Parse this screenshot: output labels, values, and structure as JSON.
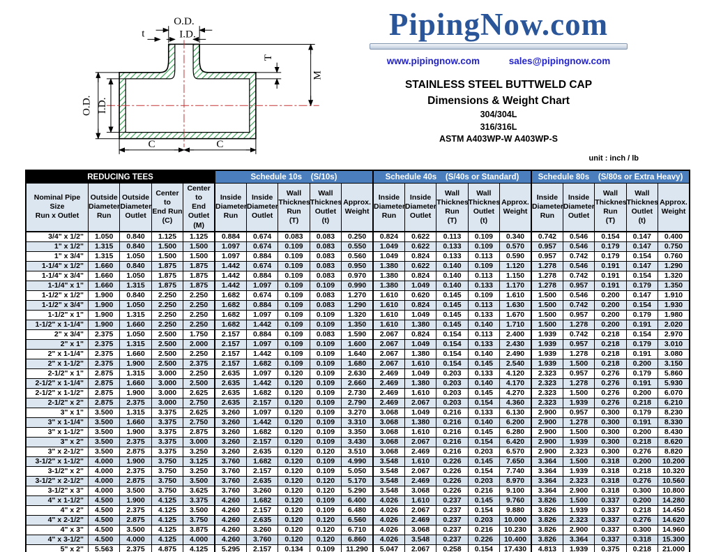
{
  "brand": {
    "logo_text": "PipingNow.com",
    "website": "www.pipingnow.com",
    "email": "sales@pipingnow.com"
  },
  "heading": {
    "line1": "STAINLESS STEEL BUTTWELD CAP",
    "line2": "Dimensions & Weight Chart",
    "line3": "304/304L",
    "line4": "316/316L",
    "line5": "ASTM A403WP-W   A403WP-S",
    "unit_note": "unit : inch / lb"
  },
  "diagram": {
    "labels": {
      "od_top": "O.D.",
      "id_top": "I.D.",
      "t_small": "t",
      "od_left": "O.D.",
      "id_left": "I.D.",
      "wall_T": "T",
      "m_height": "M",
      "c_left": "C",
      "c_right": "C"
    }
  },
  "colors": {
    "accent_blue": "#4a7ebd",
    "stripe_blue": "#dce6f1",
    "logo_blue": "#2a5699",
    "link_blue": "#2323cc",
    "bar_black": "#000000",
    "centerline_red": "#c43434",
    "hatch_green": "#35a052"
  },
  "table": {
    "group_headers": [
      {
        "label": "REDUCING TEES",
        "span": 5,
        "theme": "dark"
      },
      {
        "label": "Schedule 10s    (S/10s)",
        "span": 5,
        "theme": "blue"
      },
      {
        "label": "Schedule 40s    (S/40s or Standard)",
        "span": 5,
        "theme": "blue"
      },
      {
        "label": "Schedule 80s    (S/80s or Extra Heavy)",
        "span": 5,
        "theme": "blue"
      }
    ],
    "column_headers": [
      "Nominal Pipe\nSize\nRun x Outlet",
      "Outside\nDiameter\nRun",
      "Outside\nDiameter\nOutlet",
      "Center to\nEnd Run\n(C)",
      "Center to\nEnd\nOutlet\n(M)",
      "Inside\nDiameter\nRun",
      "Inside\nDiameter\nOutlet",
      "Wall\nThickness\nRun\n(T)",
      "Wall\nThickness\nOutlet\n(t)",
      "Approx.\nWeight",
      "Inside\nDiameter\nRun",
      "Inside\nDiameter\nOutlet",
      "Wall\nThickness\nRun\n(T)",
      "Wall\nThickness\nOutlet\n(t)",
      "Approx.\nWeight",
      "Inside\nDiameter\nRun",
      "Inside\nDiameter\nOutlet",
      "Wall\nThickness\nRun\n(T)",
      "Wall\nThickness\nOutlet\n(t)",
      "Approx.\nWeight"
    ],
    "rows": [
      [
        "3/4\" x 1/2\"",
        "1.050",
        "0.840",
        "1.125",
        "1.125",
        "0.884",
        "0.674",
        "0.083",
        "0.083",
        "0.250",
        "0.824",
        "0.622",
        "0.113",
        "0.109",
        "0.340",
        "0.742",
        "0.546",
        "0.154",
        "0.147",
        "0.400"
      ],
      [
        "1\" x 1/2\"",
        "1.315",
        "0.840",
        "1.500",
        "1.500",
        "1.097",
        "0.674",
        "0.109",
        "0.083",
        "0.550",
        "1.049",
        "0.622",
        "0.133",
        "0.109",
        "0.570",
        "0.957",
        "0.546",
        "0.179",
        "0.147",
        "0.750"
      ],
      [
        "1\" x 3/4\"",
        "1.315",
        "1.050",
        "1.500",
        "1.500",
        "1.097",
        "0.884",
        "0.109",
        "0.083",
        "0.560",
        "1.049",
        "0.824",
        "0.133",
        "0.113",
        "0.590",
        "0.957",
        "0.742",
        "0.179",
        "0.154",
        "0.760"
      ],
      [
        "1-1/4\" x 1/2\"",
        "1.660",
        "0.840",
        "1.875",
        "1.875",
        "1.442",
        "0.674",
        "0.109",
        "0.083",
        "0.950",
        "1.380",
        "0.622",
        "0.140",
        "0.109",
        "1.120",
        "1.278",
        "0.546",
        "0.191",
        "0.147",
        "1.290"
      ],
      [
        "1-1/4\" x 3/4\"",
        "1.660",
        "1.050",
        "1.875",
        "1.875",
        "1.442",
        "0.884",
        "0.109",
        "0.083",
        "0.970",
        "1.380",
        "0.824",
        "0.140",
        "0.113",
        "1.150",
        "1.278",
        "0.742",
        "0.191",
        "0.154",
        "1.320"
      ],
      [
        "1-1/4\" x 1\"",
        "1.660",
        "1.315",
        "1.875",
        "1.875",
        "1.442",
        "1.097",
        "0.109",
        "0.109",
        "0.990",
        "1.380",
        "1.049",
        "0.140",
        "0.133",
        "1.170",
        "1.278",
        "0.957",
        "0.191",
        "0.179",
        "1.350"
      ],
      [
        "1-1/2\" x 1/2\"",
        "1.900",
        "0.840",
        "2.250",
        "2.250",
        "1.682",
        "0.674",
        "0.109",
        "0.083",
        "1.270",
        "1.610",
        "0.620",
        "0.145",
        "0.109",
        "1.610",
        "1.500",
        "0.546",
        "0.200",
        "0.147",
        "1.910"
      ],
      [
        "1-1/2\" x 3/4\"",
        "1.900",
        "1.050",
        "2.250",
        "2.250",
        "1.682",
        "0.884",
        "0.109",
        "0.083",
        "1.290",
        "1.610",
        "0.824",
        "0.145",
        "0.113",
        "1.630",
        "1.500",
        "0.742",
        "0.200",
        "0.154",
        "1.930"
      ],
      [
        "1-1/2\" x 1\"",
        "1.900",
        "1.315",
        "2.250",
        "2.250",
        "1.682",
        "1.097",
        "0.109",
        "0.109",
        "1.320",
        "1.610",
        "1.049",
        "0.145",
        "0.133",
        "1.670",
        "1.500",
        "0.957",
        "0.200",
        "0.179",
        "1.980"
      ],
      [
        "1-1/2\" x 1-1/4\"",
        "1.900",
        "1.660",
        "2.250",
        "2.250",
        "1.682",
        "1.442",
        "0.109",
        "0.109",
        "1.350",
        "1.610",
        "1.380",
        "0.145",
        "0.140",
        "1.710",
        "1.500",
        "1.278",
        "0.200",
        "0.191",
        "2.020"
      ],
      [
        "2\" x 3/4\"",
        "2.375",
        "1.050",
        "2.500",
        "1.750",
        "2.157",
        "0.884",
        "0.109",
        "0.083",
        "1.590",
        "2.067",
        "0.824",
        "0.154",
        "0.113",
        "2.400",
        "1.939",
        "0.742",
        "0.218",
        "0.154",
        "2.970"
      ],
      [
        "2\" x 1\"",
        "2.375",
        "1.315",
        "2.500",
        "2.000",
        "2.157",
        "1.097",
        "0.109",
        "0.109",
        "1.600",
        "2.067",
        "1.049",
        "0.154",
        "0.133",
        "2.430",
        "1.939",
        "0.957",
        "0.218",
        "0.179",
        "3.010"
      ],
      [
        "2\" x 1-1/4\"",
        "2.375",
        "1.660",
        "2.500",
        "2.250",
        "2.157",
        "1.442",
        "0.109",
        "0.109",
        "1.640",
        "2.067",
        "1.380",
        "0.154",
        "0.140",
        "2.490",
        "1.939",
        "1.278",
        "0.218",
        "0.191",
        "3.080"
      ],
      [
        "2\" x 1-1/2\"",
        "2.375",
        "1.900",
        "2.500",
        "2.375",
        "2.157",
        "1.682",
        "0.109",
        "0.109",
        "1.680",
        "2.067",
        "1.610",
        "0.154",
        "0.145",
        "2.540",
        "1.939",
        "1.500",
        "0.218",
        "0.200",
        "3.150"
      ],
      [
        "2-1/2\" x 1\"",
        "2.875",
        "1.315",
        "3.000",
        "2.250",
        "2.635",
        "1.097",
        "0.120",
        "0.109",
        "2.630",
        "2.469",
        "1.049",
        "0.203",
        "0.133",
        "4.120",
        "2.323",
        "0.957",
        "0.276",
        "0.179",
        "5.860"
      ],
      [
        "2-1/2\" x 1-1/4\"",
        "2.875",
        "1.660",
        "3.000",
        "2.500",
        "2.635",
        "1.442",
        "0.120",
        "0.109",
        "2.660",
        "2.469",
        "1.380",
        "0.203",
        "0.140",
        "4.170",
        "2.323",
        "1.278",
        "0.276",
        "0.191",
        "5.930"
      ],
      [
        "2-1/2\" x 1-1/2\"",
        "2.875",
        "1.900",
        "3.000",
        "2.625",
        "2.635",
        "1.682",
        "0.120",
        "0.109",
        "2.730",
        "2.469",
        "1.610",
        "0.203",
        "0.145",
        "4.270",
        "2.323",
        "1.500",
        "0.276",
        "0.200",
        "6.070"
      ],
      [
        "2-1/2\" x 2\"",
        "2.875",
        "2.375",
        "3.000",
        "2.750",
        "2.635",
        "2.157",
        "0.120",
        "0.109",
        "2.790",
        "2.469",
        "2.067",
        "0.203",
        "0.154",
        "4.360",
        "2.323",
        "1.939",
        "0.276",
        "0.218",
        "6.210"
      ],
      [
        "3\" x 1\"",
        "3.500",
        "1.315",
        "3.375",
        "2.625",
        "3.260",
        "1.097",
        "0.120",
        "0.109",
        "3.270",
        "3.068",
        "1.049",
        "0.216",
        "0.133",
        "6.130",
        "2.900",
        "0.957",
        "0.300",
        "0.179",
        "8.230"
      ],
      [
        "3\" x 1-1/4\"",
        "3.500",
        "1.660",
        "3.375",
        "2.750",
        "3.260",
        "1.442",
        "0.120",
        "0.109",
        "3.310",
        "3.068",
        "1.380",
        "0.216",
        "0.140",
        "6.200",
        "2.900",
        "1.278",
        "0.300",
        "0.191",
        "8.330"
      ],
      [
        "3\" x 1-1/2\"",
        "3.500",
        "1.900",
        "3.375",
        "2.875",
        "3.260",
        "1.682",
        "0.120",
        "0.109",
        "3.350",
        "3.068",
        "1.610",
        "0.216",
        "0.145",
        "6.280",
        "2.900",
        "1.500",
        "0.300",
        "0.200",
        "8.430"
      ],
      [
        "3\" x 2\"",
        "3.500",
        "2.375",
        "3.375",
        "3.000",
        "3.260",
        "2.157",
        "0.120",
        "0.109",
        "3.430",
        "3.068",
        "2.067",
        "0.216",
        "0.154",
        "6.420",
        "2.900",
        "1.939",
        "0.300",
        "0.218",
        "8.620"
      ],
      [
        "3\" x 2-1/2\"",
        "3.500",
        "2.875",
        "3.375",
        "3.250",
        "3.260",
        "2.635",
        "0.120",
        "0.120",
        "3.510",
        "3.068",
        "2.469",
        "0.216",
        "0.203",
        "6.570",
        "2.900",
        "2.323",
        "0.300",
        "0.276",
        "8.820"
      ],
      [
        "3-1/2\" x 1-1/2\"",
        "4.000",
        "1.900",
        "3.750",
        "3.125",
        "3.760",
        "1.682",
        "0.120",
        "0.109",
        "4.990",
        "3.548",
        "1.610",
        "0.226",
        "0.145",
        "7.650",
        "3.364",
        "1.500",
        "0.318",
        "0.200",
        "10.200"
      ],
      [
        "3-1/2\" x 2\"",
        "4.000",
        "2.375",
        "3.750",
        "3.250",
        "3.760",
        "2.157",
        "0.120",
        "0.109",
        "5.050",
        "3.548",
        "2.067",
        "0.226",
        "0.154",
        "7.740",
        "3.364",
        "1.939",
        "0.318",
        "0.218",
        "10.320"
      ],
      [
        "3-1/2\" x 2-1/2\"",
        "4.000",
        "2.875",
        "3.750",
        "3.500",
        "3.760",
        "2.635",
        "0.120",
        "0.120",
        "5.170",
        "3.548",
        "2.469",
        "0.226",
        "0.203",
        "8.970",
        "3.364",
        "2.323",
        "0.318",
        "0.276",
        "10.560"
      ],
      [
        "3-1/2\" x 3\"",
        "4.000",
        "3.500",
        "3.750",
        "3.625",
        "3.760",
        "3.260",
        "0.120",
        "0.120",
        "5.290",
        "3.548",
        "3.068",
        "0.226",
        "0.216",
        "9.100",
        "3.364",
        "2.900",
        "0.318",
        "0.300",
        "10.800"
      ],
      [
        "4\" x 1-1/2\"",
        "4.500",
        "1.900",
        "4.125",
        "3.375",
        "4.260",
        "1.682",
        "0.120",
        "0.109",
        "6.400",
        "4.026",
        "1.610",
        "0.237",
        "0.145",
        "9.760",
        "3.826",
        "1.500",
        "0.337",
        "0.200",
        "14.280"
      ],
      [
        "4\" x 2\"",
        "4.500",
        "2.375",
        "4.125",
        "3.500",
        "4.260",
        "2.157",
        "0.120",
        "0.109",
        "6.480",
        "4.026",
        "2.067",
        "0.237",
        "0.154",
        "9.880",
        "3.826",
        "1.939",
        "0.337",
        "0.218",
        "14.450"
      ],
      [
        "4\" x 2-1/2\"",
        "4.500",
        "2.875",
        "4.125",
        "3.750",
        "4.260",
        "2.635",
        "0.120",
        "0.120",
        "6.560",
        "4.026",
        "2.469",
        "0.237",
        "0.203",
        "10.000",
        "3.826",
        "2.323",
        "0.337",
        "0.276",
        "14.620"
      ],
      [
        "4\" x 3\"",
        "4.500",
        "3.500",
        "4.125",
        "3.875",
        "4.260",
        "3.260",
        "0.120",
        "0.120",
        "6.710",
        "4.026",
        "3.068",
        "0.237",
        "0.216",
        "10.230",
        "3.826",
        "2.900",
        "0.337",
        "0.300",
        "14.960"
      ],
      [
        "4\" x 3-1/2\"",
        "4.500",
        "4.000",
        "4.125",
        "4.000",
        "4.260",
        "3.760",
        "0.120",
        "0.120",
        "6.860",
        "4.026",
        "3.548",
        "0.237",
        "0.226",
        "10.400",
        "3.826",
        "3.364",
        "0.337",
        "0.318",
        "15.300"
      ],
      [
        "5\" x 2\"",
        "5.563",
        "2.375",
        "4.875",
        "4.125",
        "5.295",
        "2.157",
        "0.134",
        "0.109",
        "11.290",
        "5.047",
        "2.067",
        "0.258",
        "0.154",
        "17.430",
        "4.813",
        "1.939",
        "0.375",
        "0.218",
        "21.000"
      ],
      [
        "5\" x 2-1/2\"",
        "5.563",
        "2.875",
        "4.875",
        "4.250",
        "5.295",
        "2.635",
        "0.134",
        "0.120",
        "11.430",
        "5.047",
        "2.469",
        "0.258",
        "0.203",
        "17.630",
        "4.813",
        "2.323",
        "0.375",
        "0.276",
        "21.250"
      ],
      [
        "5\" x 3\"",
        "5.563",
        "3.500",
        "4.875",
        "4.375",
        "5.295",
        "3.260",
        "0.134",
        "0.120",
        "11.560",
        "5.047",
        "3.068",
        "0.258",
        "0.216",
        "17.840",
        "4.813",
        "2.900",
        "0.375",
        "0.300",
        "21.500"
      ]
    ]
  }
}
